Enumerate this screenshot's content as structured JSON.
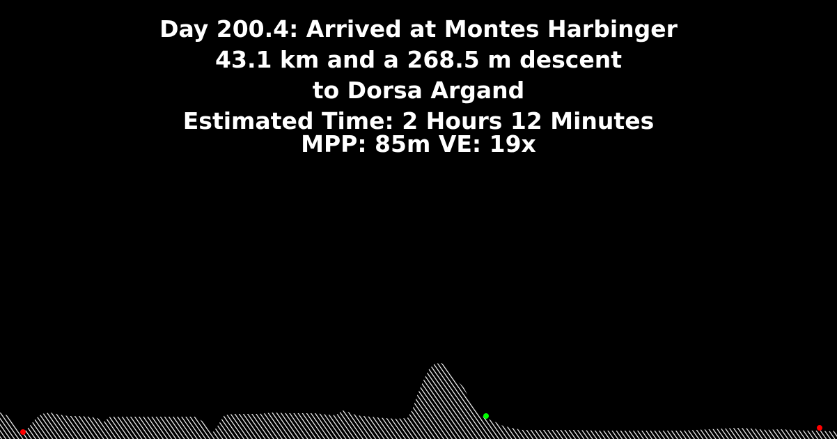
{
  "header": {
    "line1": "Day 200.4: Arrived at Montes Harbinger",
    "line2": "43.1 km and a 268.5 m descent",
    "line3": "to Dorsa Argand",
    "line4": "Estimated Time: 2 Hours 12 Minutes",
    "line5": "MPP: 85m VE: 19x"
  },
  "colors": {
    "background": "#000000",
    "text": "#ffffff",
    "terrain_hatch": "#ffffff",
    "marker_start": "#ff0000",
    "marker_current": "#00ff00",
    "marker_end": "#ff0000"
  },
  "markers": [
    {
      "name": "start-marker",
      "color": "#ff0000"
    },
    {
      "name": "current-position-marker",
      "color": "#00ff00"
    },
    {
      "name": "destination-marker",
      "color": "#ff0000"
    }
  ]
}
